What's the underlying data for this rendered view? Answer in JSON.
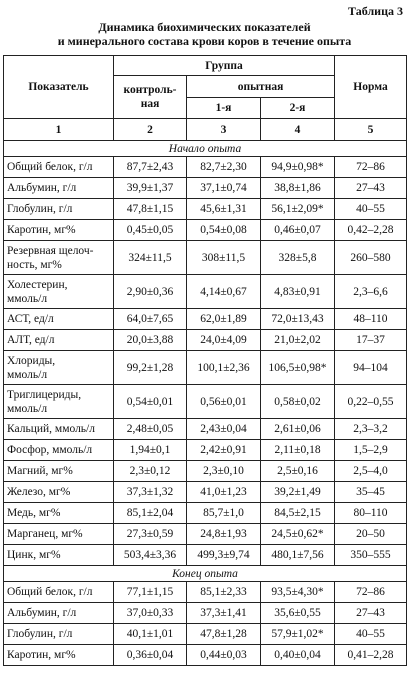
{
  "header": {
    "label": "Таблица 3",
    "title": [
      "Динамика биохимических показателей",
      "и минерального состава крови коров в течение опыта"
    ]
  },
  "table": {
    "head": {
      "indicator": "Показатель",
      "group": "Группа",
      "norm": "Норма",
      "control": "контроль-\nная",
      "experimental": "опытная",
      "first": "1-я",
      "second": "2-я",
      "numbers": [
        "1",
        "2",
        "3",
        "4",
        "5"
      ]
    },
    "sections": [
      {
        "title": "Начало опыта",
        "rows": [
          [
            "Общий белок, г/л",
            "87,7±2,43",
            "82,7±2,30",
            "94,9±0,98*",
            "72–86"
          ],
          [
            "Альбумин, г/л",
            "39,9±1,37",
            "37,1±0,74",
            "38,8±1,86",
            "27–43"
          ],
          [
            "Глобулин, г/л",
            "47,8±1,15",
            "45,6±1,31",
            "56,1±2,09*",
            "40–55"
          ],
          [
            "Каротин, мг%",
            "0,45±0,05",
            "0,54±0,08",
            "0,46±0,07",
            "0,42–2,28"
          ],
          [
            "Резервная щелоч-\nность, мг%",
            "324±11,5",
            "308±11,5",
            "328±5,8",
            "260–580"
          ],
          [
            "Холестерин,\nммоль/л",
            "2,90±0,36",
            "4,14±0,67",
            "4,83±0,91",
            "2,3–6,6"
          ],
          [
            "АСТ, ед/л",
            "64,0±7,65",
            "62,0±1,89",
            "72,0±13,43",
            "48–110"
          ],
          [
            "АЛТ, ед/л",
            "20,0±3,88",
            "24,0±4,09",
            "21,0±2,02",
            "17–37"
          ],
          [
            "Хлориды,\nммоль/л",
            "99,2±1,28",
            "100,1±2,36",
            "106,5±0,98*",
            "94–104"
          ],
          [
            "Триглицериды,\nммоль/л",
            "0,54±0,01",
            "0,56±0,01",
            "0,58±0,02",
            "0,22–0,55"
          ],
          [
            "Кальций, ммоль/л",
            "2,48±0,05",
            "2,43±0,04",
            "2,61±0,06",
            "2,3–3,2"
          ],
          [
            "Фосфор, ммоль/л",
            "1,94±0,1",
            "2,42±0,91",
            "2,11±0,18",
            "1,5–2,9"
          ],
          [
            "Магний, мг%",
            "2,3±0,12",
            "2,3±0,10",
            "2,5±0,16",
            "2,5–4,0"
          ],
          [
            "Железо, мг%",
            "37,3±1,32",
            "41,0±1,23",
            "39,2±1,49",
            "35–45"
          ],
          [
            "Медь, мг%",
            "85,1±2,04",
            "85,7±1,0",
            "84,5±2,15",
            "80–110"
          ],
          [
            "Марганец, мг%",
            "27,3±0,59",
            "24,8±1,93",
            "24,5±0,62*",
            "20–50"
          ],
          [
            "Цинк, мг%",
            "503,4±3,36",
            "499,3±9,74",
            "480,1±7,56",
            "350–555"
          ]
        ]
      },
      {
        "title": "Конец опыта",
        "rows": [
          [
            "Общий белок, г/л",
            "77,1±1,15",
            "85,1±2,33",
            "93,5±4,30*",
            "72–86"
          ],
          [
            "Альбумин, г/л",
            "37,0±0,33",
            "37,3±1,41",
            "35,6±0,55",
            "27–43"
          ],
          [
            "Глобулин, г/л",
            "40,1±1,01",
            "47,8±1,28",
            "57,9±1,02*",
            "40–55"
          ],
          [
            "Каротин, мг%",
            "0,36±0,04",
            "0,44±0,03",
            "0,40±0,04",
            "0,41–2,28"
          ]
        ]
      }
    ]
  }
}
